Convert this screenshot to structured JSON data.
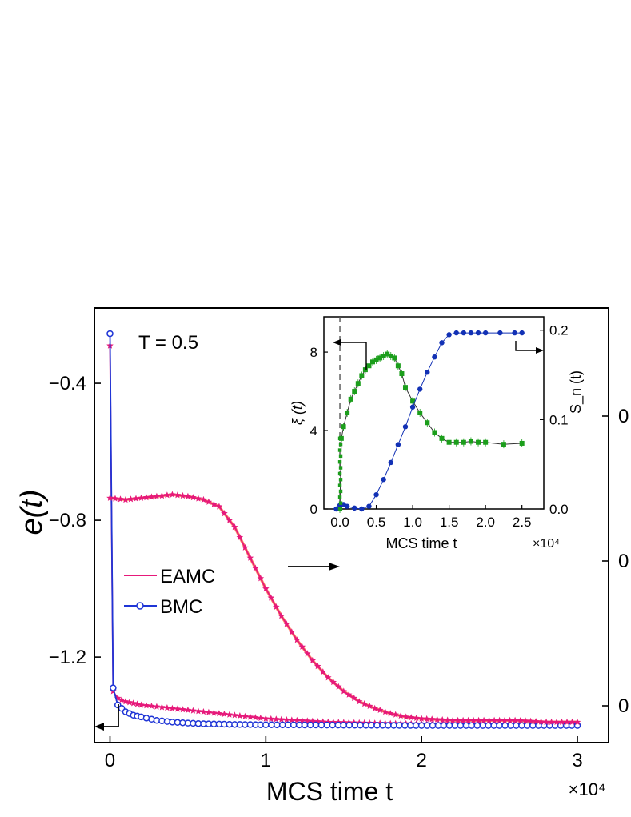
{
  "chart_data": [
    {
      "type": "line",
      "annotation": "T = 0.5",
      "xlabel": "MCS time t",
      "ylabel": "e(t)",
      "x_multiplier": "×10⁴",
      "xlim": [
        -0.1,
        3.2
      ],
      "ylim": [
        -1.45,
        -0.18
      ],
      "x_ticks": [
        "0",
        "1",
        "2",
        "3"
      ],
      "y_ticks": [
        "-0.4",
        "-0.8",
        "-1.2"
      ],
      "right_ticks": [
        "0",
        "0",
        "0"
      ],
      "legend_position": "center-left",
      "series": [
        {
          "name": "EAMC",
          "color": "#e6197a",
          "marker": "star",
          "x": [
            0.0,
            0.02,
            0.05,
            0.1,
            0.15,
            0.2,
            0.3,
            0.4,
            0.5,
            0.6,
            0.7,
            0.8,
            0.9,
            1.0,
            1.2,
            1.4,
            1.6,
            1.8,
            2.0,
            2.2,
            2.4,
            2.6,
            2.8,
            3.0
          ],
          "values": [
            -0.29,
            -1.3,
            -1.32,
            -1.33,
            -1.335,
            -1.34,
            -1.345,
            -1.35,
            -1.355,
            -1.36,
            -1.365,
            -1.37,
            -1.375,
            -1.38,
            -1.385,
            -1.39,
            -1.392,
            -1.394,
            -1.395,
            -1.396,
            -1.397,
            -1.397,
            -1.398,
            -1.398
          ]
        },
        {
          "name": "BMC",
          "color": "#1f35d6",
          "marker": "circle",
          "x": [
            0.0,
            0.02,
            0.05,
            0.1,
            0.15,
            0.2,
            0.3,
            0.4,
            0.5,
            0.6,
            0.8,
            1.0,
            1.5,
            2.0,
            2.5,
            3.0
          ],
          "values": [
            -0.255,
            -1.29,
            -1.34,
            -1.36,
            -1.37,
            -1.375,
            -1.385,
            -1.39,
            -1.393,
            -1.395,
            -1.397,
            -1.398,
            -1.399,
            -1.4,
            -1.4,
            -1.4
          ]
        },
        {
          "name": "",
          "axis": "right",
          "color": "#e6197a",
          "marker": "star",
          "x": [
            0.0,
            0.1,
            0.2,
            0.3,
            0.4,
            0.5,
            0.6,
            0.7,
            0.8,
            0.9,
            1.0,
            1.1,
            1.2,
            1.3,
            1.4,
            1.5,
            1.6,
            1.7,
            1.8,
            1.9,
            2.0,
            2.2,
            2.4,
            2.6,
            2.8,
            3.0
          ],
          "values": [
            -0.735,
            -0.74,
            -0.735,
            -0.73,
            -0.725,
            -0.73,
            -0.74,
            -0.76,
            -0.82,
            -0.91,
            -1.0,
            -1.08,
            -1.15,
            -1.21,
            -1.26,
            -1.3,
            -1.33,
            -1.35,
            -1.365,
            -1.375,
            -1.38,
            -1.385,
            -1.385,
            -1.385,
            -1.39,
            -1.39
          ]
        }
      ]
    },
    {
      "type": "line",
      "xlabel": "MCS time t",
      "ylabel_left": "ξ (t)",
      "ylabel_right": "S_n (t)",
      "x_multiplier": "×10⁴",
      "xlim": [
        -0.22,
        2.8
      ],
      "ylim_left": [
        0,
        9.8
      ],
      "ylim_right": [
        0,
        0.215
      ],
      "x_ticks": [
        "0.0",
        "0.5",
        "1.0",
        "1.5",
        "2.0",
        "2.5"
      ],
      "y_ticks_left": [
        "0",
        "4",
        "8"
      ],
      "y_ticks_right": [
        "0.0",
        "0.1",
        "0.2"
      ],
      "series": [
        {
          "axis": "left",
          "color": "#1b9e1b",
          "marker": "square",
          "x": [
            0.0,
            0.02,
            0.05,
            0.1,
            0.15,
            0.2,
            0.25,
            0.3,
            0.35,
            0.4,
            0.45,
            0.5,
            0.55,
            0.6,
            0.65,
            0.7,
            0.75,
            0.8,
            0.85,
            0.9,
            1.0,
            1.1,
            1.2,
            1.3,
            1.4,
            1.5,
            1.6,
            1.7,
            1.8,
            1.9,
            2.0,
            2.25,
            2.5
          ],
          "values": [
            0.0,
            3.6,
            4.2,
            4.9,
            5.6,
            6.0,
            6.4,
            6.8,
            7.1,
            7.3,
            7.5,
            7.6,
            7.7,
            7.8,
            7.9,
            7.8,
            7.7,
            7.3,
            6.9,
            6.2,
            5.5,
            4.9,
            4.4,
            3.9,
            3.6,
            3.4,
            3.4,
            3.4,
            3.45,
            3.4,
            3.4,
            3.3,
            3.35
          ]
        },
        {
          "axis": "right",
          "color": "#1231b5",
          "marker": "circle",
          "x": [
            -0.05,
            0.0,
            0.05,
            0.1,
            0.2,
            0.3,
            0.4,
            0.5,
            0.6,
            0.7,
            0.8,
            0.9,
            1.0,
            1.1,
            1.2,
            1.3,
            1.4,
            1.5,
            1.6,
            1.7,
            1.8,
            1.9,
            2.0,
            2.2,
            2.4,
            2.5
          ],
          "values": [
            0.0,
            0.004,
            0.005,
            0.003,
            0.001,
            0.0,
            0.003,
            0.016,
            0.033,
            0.052,
            0.072,
            0.092,
            0.114,
            0.134,
            0.153,
            0.17,
            0.186,
            0.195,
            0.197,
            0.197,
            0.197,
            0.197,
            0.197,
            0.197,
            0.197,
            0.197
          ]
        }
      ]
    }
  ]
}
